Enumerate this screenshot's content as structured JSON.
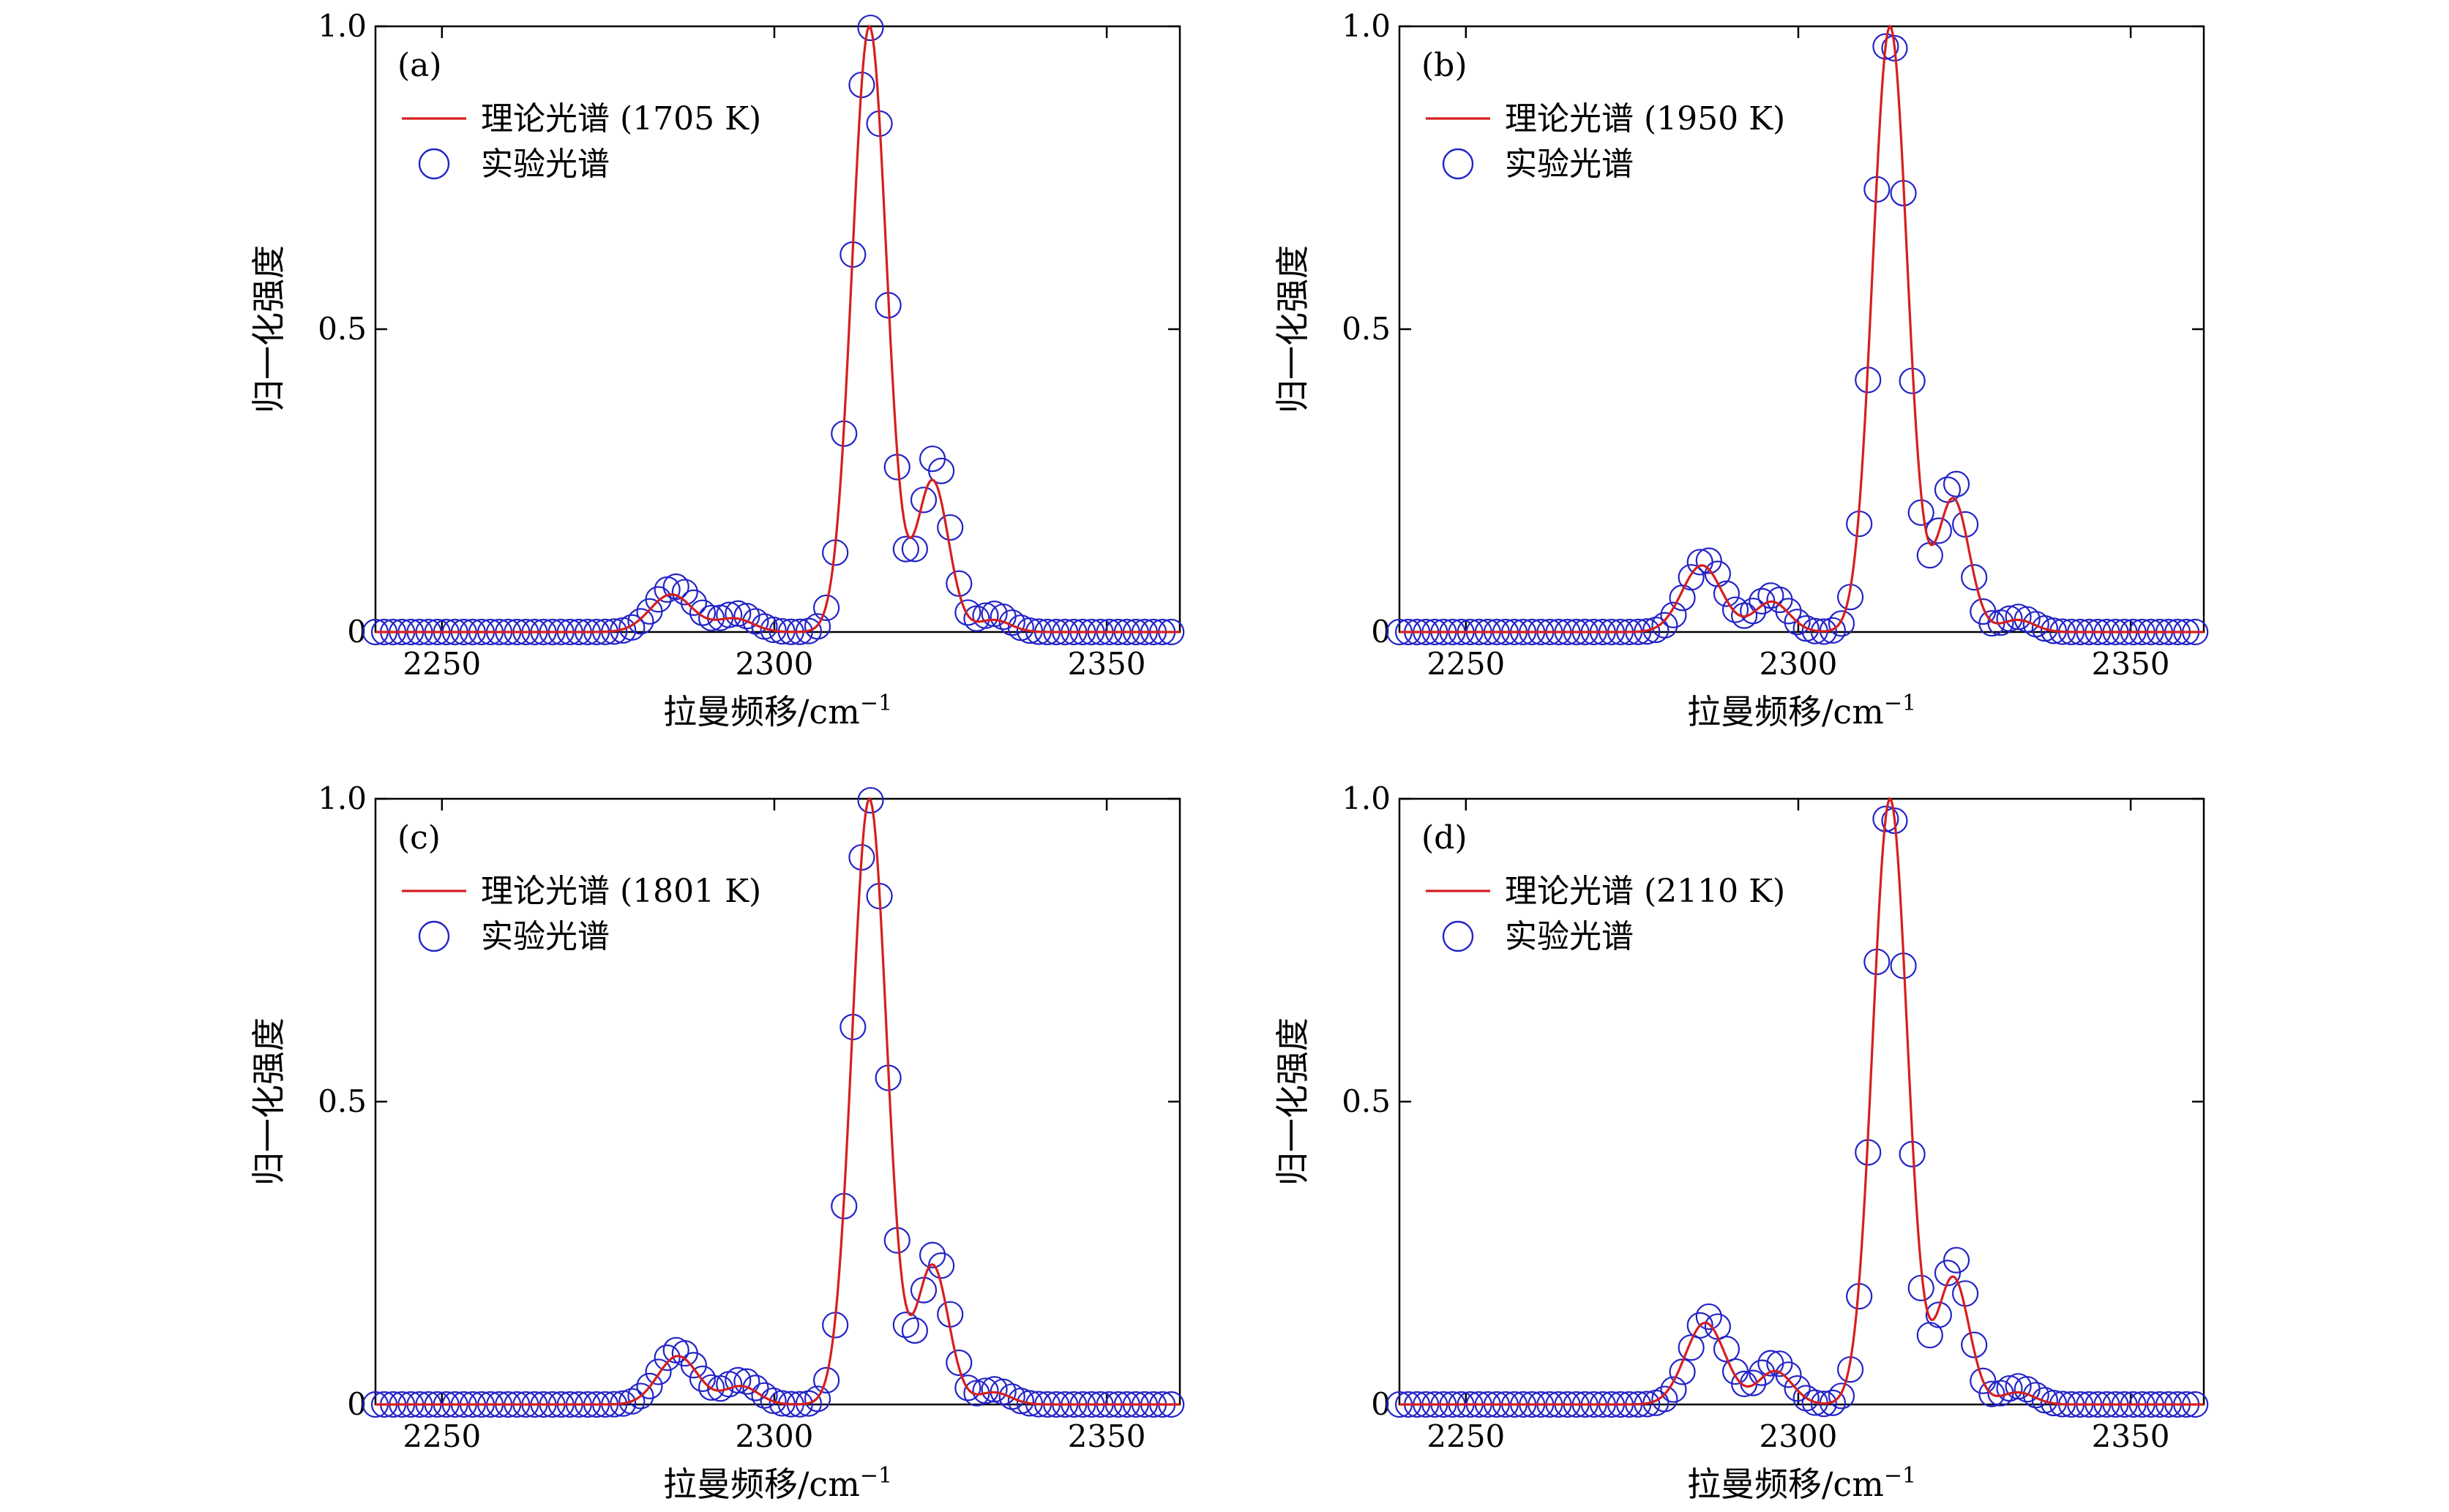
{
  "chart_data": [
    {
      "type": "scatter+line",
      "panel_label": "(a)",
      "xlabel": "拉曼频移/cm",
      "xlabel_sup": "−1",
      "ylabel": "归一化强度",
      "xlim": [
        2240,
        2361
      ],
      "ylim": [
        0,
        1.0
      ],
      "xticks": [
        2250,
        2300,
        2350
      ],
      "yticks": [
        {
          "value": 0,
          "label": "0"
        },
        {
          "value": 0.5,
          "label": "0.5"
        },
        {
          "value": 1.0,
          "label": "1.0"
        }
      ],
      "legend": {
        "position": "top-left",
        "line_label": "理论光谱 (1705 K)",
        "marker_label": "实验光谱"
      },
      "theory": {
        "name": "理论光谱 (1705 K)",
        "color": "#d61f1f",
        "peaks": [
          [
            2284.5,
            0.062,
            3.2
          ],
          [
            2294.0,
            0.022,
            2.8
          ],
          [
            2314.3,
            1.0,
            2.6
          ],
          [
            2323.8,
            0.25,
            2.4
          ],
          [
            2333.0,
            0.02,
            2.5
          ]
        ]
      },
      "experiment": {
        "name": "实验光谱",
        "color": "#2323c8",
        "x_start": 2240,
        "step": 1.33,
        "count": 91,
        "peaks": [
          [
            2285.0,
            0.075,
            3.0
          ],
          [
            2294.5,
            0.03,
            2.6
          ],
          [
            2314.3,
            1.0,
            2.55
          ],
          [
            2324.2,
            0.29,
            2.2
          ],
          [
            2333.0,
            0.03,
            2.4
          ]
        ]
      }
    },
    {
      "type": "scatter+line",
      "panel_label": "(b)",
      "xlabel": "拉曼频移/cm",
      "xlabel_sup": "−1",
      "ylabel": "归一化强度",
      "xlim": [
        2240,
        2361
      ],
      "ylim": [
        0,
        1.0
      ],
      "xticks": [
        2250,
        2300,
        2350
      ],
      "yticks": [
        {
          "value": 0,
          "label": "0"
        },
        {
          "value": 0.5,
          "label": "0.5"
        },
        {
          "value": 1.0,
          "label": "1.0"
        }
      ],
      "legend": {
        "position": "top-left",
        "line_label": "理论光谱 (1950 K)",
        "marker_label": "实验光谱"
      },
      "theory": {
        "name": "理论光谱 (1950 K)",
        "color": "#d61f1f",
        "peaks": [
          [
            2285.5,
            0.11,
            3.0
          ],
          [
            2296.0,
            0.05,
            2.6
          ],
          [
            2313.8,
            1.0,
            2.6
          ],
          [
            2323.3,
            0.22,
            2.4
          ],
          [
            2333.0,
            0.02,
            2.5
          ]
        ]
      },
      "experiment": {
        "name": "实验光谱",
        "color": "#2323c8",
        "x_start": 2240,
        "step": 1.33,
        "count": 91,
        "peaks": [
          [
            2286.0,
            0.12,
            2.8
          ],
          [
            2296.0,
            0.06,
            2.4
          ],
          [
            2313.8,
            1.0,
            2.5
          ],
          [
            2323.3,
            0.25,
            2.2
          ],
          [
            2333.0,
            0.025,
            2.4
          ]
        ]
      }
    },
    {
      "type": "scatter+line",
      "panel_label": "(c)",
      "xlabel": "拉曼频移/cm",
      "xlabel_sup": "−1",
      "ylabel": "归一化强度",
      "xlim": [
        2240,
        2361
      ],
      "ylim": [
        0,
        1.0
      ],
      "xticks": [
        2250,
        2300,
        2350
      ],
      "yticks": [
        {
          "value": 0,
          "label": "0"
        },
        {
          "value": 0.5,
          "label": "0.5"
        },
        {
          "value": 1.0,
          "label": "1.0"
        }
      ],
      "legend": {
        "position": "top-left",
        "line_label": "理论光谱 (1801 K)",
        "marker_label": "实验光谱"
      },
      "theory": {
        "name": "理论光谱 (1801 K)",
        "color": "#d61f1f",
        "peaks": [
          [
            2285.5,
            0.08,
            3.0
          ],
          [
            2295.0,
            0.03,
            2.6
          ],
          [
            2314.3,
            1.0,
            2.6
          ],
          [
            2323.8,
            0.23,
            2.4
          ],
          [
            2333.0,
            0.02,
            2.5
          ]
        ]
      },
      "experiment": {
        "name": "实验光谱",
        "color": "#2323c8",
        "x_start": 2240,
        "step": 1.33,
        "count": 91,
        "peaks": [
          [
            2285.5,
            0.09,
            2.9
          ],
          [
            2295.0,
            0.04,
            2.5
          ],
          [
            2314.3,
            1.0,
            2.55
          ],
          [
            2324.2,
            0.25,
            2.2
          ],
          [
            2333.0,
            0.025,
            2.4
          ]
        ]
      }
    },
    {
      "type": "scatter+line",
      "panel_label": "(d)",
      "xlabel": "拉曼频移/cm",
      "xlabel_sup": "−1",
      "ylabel": "归一化强度",
      "xlim": [
        2240,
        2361
      ],
      "ylim": [
        0,
        1.0
      ],
      "xticks": [
        2250,
        2300,
        2350
      ],
      "yticks": [
        {
          "value": 0,
          "label": "0"
        },
        {
          "value": 0.5,
          "label": "0.5"
        },
        {
          "value": 1.0,
          "label": "1.0"
        }
      ],
      "legend": {
        "position": "top-left",
        "line_label": "理论光谱 (2110 K)",
        "marker_label": "实验光谱"
      },
      "theory": {
        "name": "理论光谱 (2110 K)",
        "color": "#d61f1f",
        "peaks": [
          [
            2286.0,
            0.135,
            3.0
          ],
          [
            2296.5,
            0.055,
            2.6
          ],
          [
            2313.8,
            1.0,
            2.6
          ],
          [
            2323.3,
            0.21,
            2.4
          ],
          [
            2333.0,
            0.02,
            2.5
          ]
        ]
      },
      "experiment": {
        "name": "实验光谱",
        "color": "#2323c8",
        "x_start": 2240,
        "step": 1.33,
        "count": 91,
        "peaks": [
          [
            2286.5,
            0.145,
            2.8
          ],
          [
            2296.5,
            0.07,
            2.4
          ],
          [
            2313.8,
            1.0,
            2.5
          ],
          [
            2323.5,
            0.24,
            2.2
          ],
          [
            2333.0,
            0.03,
            2.4
          ]
        ]
      }
    }
  ]
}
